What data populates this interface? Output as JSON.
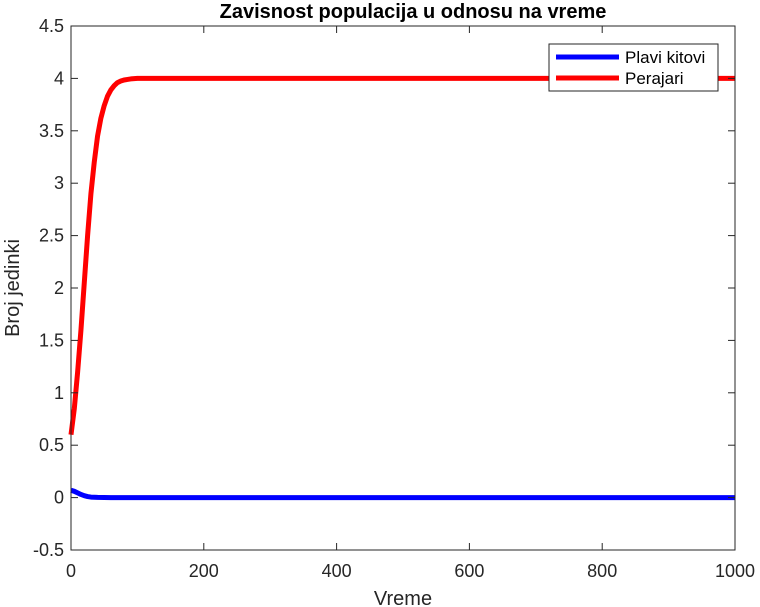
{
  "chart_data": {
    "type": "line",
    "title": "Zavisnost populacija u odnosu na vreme",
    "xlabel": "Vreme",
    "ylabel": "Broj jedinki",
    "xlim": [
      0,
      1000
    ],
    "ylim": [
      -0.5,
      4.5
    ],
    "xticks": [
      0,
      200,
      400,
      600,
      800,
      1000
    ],
    "yticks": [
      -0.5,
      0,
      0.5,
      1,
      1.5,
      2,
      2.5,
      3,
      3.5,
      4,
      4.5
    ],
    "grid": false,
    "legend_position": "top-right",
    "series": [
      {
        "name": "Plavi kitovi",
        "color": "#0000ff",
        "x": [
          0,
          5,
          10,
          15,
          20,
          25,
          30,
          40,
          60,
          100,
          200,
          400,
          600,
          800,
          1000
        ],
        "y": [
          0.07,
          0.06,
          0.045,
          0.03,
          0.018,
          0.01,
          0.005,
          0.002,
          0.0,
          0.0,
          0.0,
          0.0,
          0.0,
          0.0,
          0.0
        ]
      },
      {
        "name": "Perajari",
        "color": "#ff0000",
        "x": [
          0,
          5,
          10,
          15,
          20,
          25,
          30,
          35,
          40,
          45,
          50,
          55,
          60,
          65,
          70,
          75,
          80,
          90,
          100,
          120,
          150,
          200,
          400,
          600,
          800,
          1000
        ],
        "y": [
          0.6,
          0.85,
          1.2,
          1.6,
          2.05,
          2.5,
          2.9,
          3.2,
          3.45,
          3.62,
          3.74,
          3.83,
          3.89,
          3.93,
          3.96,
          3.975,
          3.985,
          3.995,
          4.0,
          4.0,
          4.0,
          4.0,
          4.0,
          4.0,
          4.0,
          4.0
        ]
      }
    ]
  }
}
